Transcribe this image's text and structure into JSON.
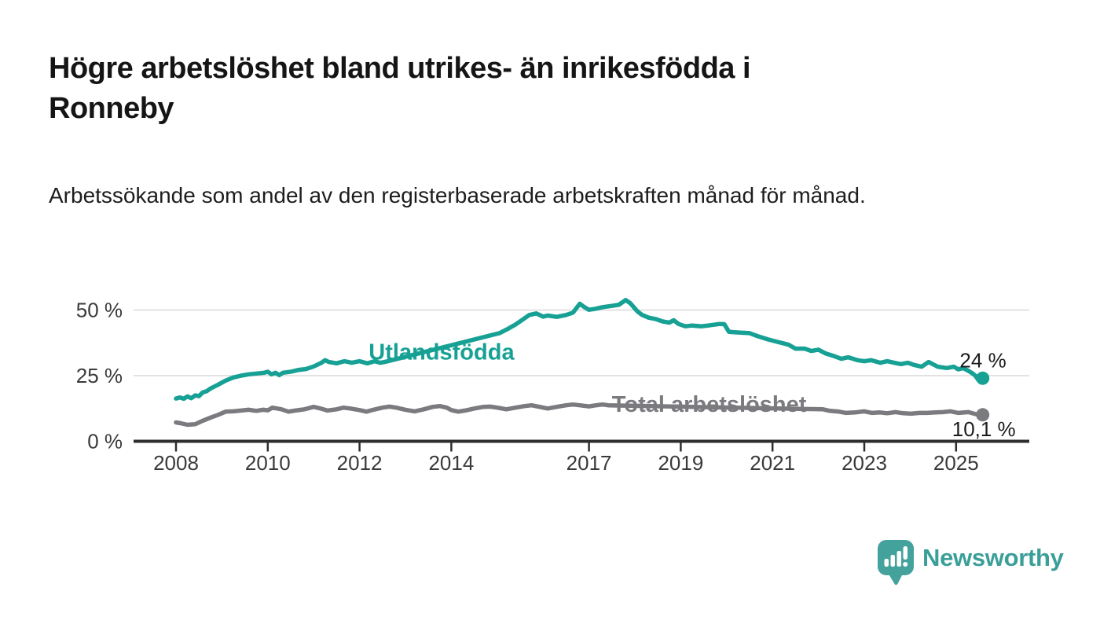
{
  "chart_data": {
    "type": "line",
    "title": "Högre arbetslöshet bland utrikes- än inrikesfödda i Ronneby",
    "subtitle": "Arbetssökande som andel av den registerbaserade arbetskraften månad för månad.",
    "xlabel": "",
    "ylabel": "",
    "x_unit": "year (monthly observations)",
    "xlim": [
      2007.5,
      2026.3
    ],
    "ylim": [
      0,
      57
    ],
    "grid": true,
    "legend_position": "inline-labels-on-lines",
    "x_ticks": [
      {
        "value": 2008,
        "label": "2008"
      },
      {
        "value": 2010,
        "label": "2010"
      },
      {
        "value": 2012,
        "label": "2012"
      },
      {
        "value": 2014,
        "label": "2014"
      },
      {
        "value": 2017,
        "label": "2017"
      },
      {
        "value": 2019,
        "label": "2019"
      },
      {
        "value": 2021,
        "label": "2021"
      },
      {
        "value": 2023,
        "label": "2023"
      },
      {
        "value": 2025,
        "label": "2025"
      }
    ],
    "y_ticks": [
      {
        "value": 50,
        "label": "50 %"
      },
      {
        "value": 25,
        "label": "25 %"
      },
      {
        "value": 0,
        "label": "0 %"
      }
    ],
    "colors": {
      "grid": "#d9d9d9",
      "axis": "#2e2e2e",
      "tick_text": "#3a3a3a",
      "end_label_text": "#1c1c1c"
    },
    "series": [
      {
        "name": "Utlandsfödda",
        "color": "#17a094",
        "end_value": 24,
        "end_label": "24 %",
        "label_anchor": {
          "year": 2012.2,
          "value": 31.2
        },
        "label_gap": [
          2012.56,
          2015.04
        ],
        "points": [
          [
            2008.0,
            16.3
          ],
          [
            2008.08,
            16.7
          ],
          [
            2008.17,
            16.2
          ],
          [
            2008.25,
            17.1
          ],
          [
            2008.33,
            16.4
          ],
          [
            2008.42,
            17.5
          ],
          [
            2008.5,
            17.2
          ],
          [
            2008.58,
            18.6
          ],
          [
            2008.67,
            19.1
          ],
          [
            2008.75,
            20.1
          ],
          [
            2008.92,
            21.6
          ],
          [
            2009.08,
            23.1
          ],
          [
            2009.25,
            24.3
          ],
          [
            2009.42,
            25.0
          ],
          [
            2009.58,
            25.5
          ],
          [
            2009.75,
            25.8
          ],
          [
            2009.92,
            26.1
          ],
          [
            2010.0,
            26.5
          ],
          [
            2010.08,
            25.5
          ],
          [
            2010.17,
            26.1
          ],
          [
            2010.25,
            25.2
          ],
          [
            2010.33,
            26.1
          ],
          [
            2010.5,
            26.5
          ],
          [
            2010.67,
            27.2
          ],
          [
            2010.83,
            27.5
          ],
          [
            2011.0,
            28.5
          ],
          [
            2011.17,
            29.9
          ],
          [
            2011.25,
            30.9
          ],
          [
            2011.33,
            30.2
          ],
          [
            2011.5,
            29.7
          ],
          [
            2011.67,
            30.5
          ],
          [
            2011.83,
            29.9
          ],
          [
            2012.0,
            30.5
          ],
          [
            2012.17,
            29.7
          ],
          [
            2012.33,
            30.5
          ],
          [
            2012.45,
            29.9
          ],
          [
            2012.55,
            30.2
          ],
          [
            2015.05,
            41.2
          ],
          [
            2015.15,
            42.1
          ],
          [
            2015.25,
            43.0
          ],
          [
            2015.4,
            44.5
          ],
          [
            2015.55,
            46.3
          ],
          [
            2015.7,
            48.1
          ],
          [
            2015.85,
            48.7
          ],
          [
            2016.0,
            47.5
          ],
          [
            2016.1,
            47.9
          ],
          [
            2016.3,
            47.4
          ],
          [
            2016.5,
            48.1
          ],
          [
            2016.65,
            49.0
          ],
          [
            2016.8,
            52.4
          ],
          [
            2016.9,
            51.1
          ],
          [
            2017.0,
            50.1
          ],
          [
            2017.15,
            50.5
          ],
          [
            2017.3,
            51.1
          ],
          [
            2017.5,
            51.6
          ],
          [
            2017.65,
            52.0
          ],
          [
            2017.8,
            53.8
          ],
          [
            2017.9,
            52.6
          ],
          [
            2018.05,
            49.6
          ],
          [
            2018.15,
            48.2
          ],
          [
            2018.3,
            47.1
          ],
          [
            2018.45,
            46.6
          ],
          [
            2018.6,
            45.7
          ],
          [
            2018.75,
            45.2
          ],
          [
            2018.85,
            46.1
          ],
          [
            2018.95,
            44.7
          ],
          [
            2019.1,
            43.8
          ],
          [
            2019.25,
            44.1
          ],
          [
            2019.45,
            43.8
          ],
          [
            2019.6,
            44.1
          ],
          [
            2019.85,
            44.7
          ],
          [
            2019.95,
            44.6
          ],
          [
            2020.05,
            41.7
          ],
          [
            2020.3,
            41.4
          ],
          [
            2020.5,
            41.2
          ],
          [
            2020.65,
            40.2
          ],
          [
            2020.9,
            38.8
          ],
          [
            2021.1,
            37.9
          ],
          [
            2021.35,
            36.8
          ],
          [
            2021.5,
            35.3
          ],
          [
            2021.7,
            35.3
          ],
          [
            2021.85,
            34.4
          ],
          [
            2022.0,
            34.9
          ],
          [
            2022.15,
            33.5
          ],
          [
            2022.35,
            32.4
          ],
          [
            2022.5,
            31.4
          ],
          [
            2022.65,
            32.0
          ],
          [
            2022.85,
            30.9
          ],
          [
            2023.0,
            30.5
          ],
          [
            2023.15,
            30.9
          ],
          [
            2023.35,
            29.9
          ],
          [
            2023.5,
            30.5
          ],
          [
            2023.65,
            29.9
          ],
          [
            2023.8,
            29.4
          ],
          [
            2023.95,
            29.9
          ],
          [
            2024.1,
            29.0
          ],
          [
            2024.25,
            28.4
          ],
          [
            2024.4,
            30.2
          ],
          [
            2024.6,
            28.4
          ],
          [
            2024.8,
            27.9
          ],
          [
            2024.95,
            28.4
          ],
          [
            2025.05,
            27.4
          ],
          [
            2025.15,
            27.9
          ],
          [
            2025.25,
            27.0
          ],
          [
            2025.35,
            26.0
          ],
          [
            2025.42,
            25.0
          ],
          [
            2025.48,
            23.5
          ],
          [
            2025.53,
            24.6
          ],
          [
            2025.58,
            24.0
          ]
        ]
      },
      {
        "name": "Total arbetslöshet",
        "color": "#7b7b7f",
        "end_value": 10.1,
        "end_label": "10,1 %",
        "label_anchor": {
          "year": 2017.5,
          "value": 11.3
        },
        "label_gap": [
          2017.43,
          2022.09
        ],
        "points": [
          [
            2008.0,
            7.2
          ],
          [
            2008.1,
            6.9
          ],
          [
            2008.25,
            6.3
          ],
          [
            2008.42,
            6.5
          ],
          [
            2008.58,
            7.8
          ],
          [
            2008.75,
            9.0
          ],
          [
            2008.92,
            10.1
          ],
          [
            2009.08,
            11.3
          ],
          [
            2009.25,
            11.4
          ],
          [
            2009.42,
            11.7
          ],
          [
            2009.58,
            12.0
          ],
          [
            2009.75,
            11.6
          ],
          [
            2009.9,
            12.0
          ],
          [
            2010.0,
            11.8
          ],
          [
            2010.1,
            12.8
          ],
          [
            2010.3,
            12.2
          ],
          [
            2010.45,
            11.3
          ],
          [
            2010.6,
            11.7
          ],
          [
            2010.8,
            12.2
          ],
          [
            2011.0,
            13.1
          ],
          [
            2011.15,
            12.5
          ],
          [
            2011.3,
            11.7
          ],
          [
            2011.5,
            12.2
          ],
          [
            2011.65,
            12.8
          ],
          [
            2011.8,
            12.5
          ],
          [
            2012.0,
            11.9
          ],
          [
            2012.15,
            11.3
          ],
          [
            2012.3,
            12.0
          ],
          [
            2012.5,
            12.8
          ],
          [
            2012.65,
            13.2
          ],
          [
            2012.8,
            12.8
          ],
          [
            2013.0,
            12.0
          ],
          [
            2013.2,
            11.4
          ],
          [
            2013.4,
            12.2
          ],
          [
            2013.6,
            13.1
          ],
          [
            2013.75,
            13.4
          ],
          [
            2013.9,
            12.8
          ],
          [
            2014.0,
            11.9
          ],
          [
            2014.15,
            11.3
          ],
          [
            2014.3,
            11.7
          ],
          [
            2014.5,
            12.5
          ],
          [
            2014.7,
            13.1
          ],
          [
            2014.85,
            13.2
          ],
          [
            2015.0,
            12.8
          ],
          [
            2015.2,
            12.2
          ],
          [
            2015.4,
            12.8
          ],
          [
            2015.6,
            13.4
          ],
          [
            2015.75,
            13.7
          ],
          [
            2015.9,
            13.2
          ],
          [
            2016.1,
            12.5
          ],
          [
            2016.3,
            13.1
          ],
          [
            2016.5,
            13.7
          ],
          [
            2016.65,
            14.0
          ],
          [
            2016.8,
            13.7
          ],
          [
            2017.0,
            13.3
          ],
          [
            2017.15,
            13.7
          ],
          [
            2017.3,
            14.0
          ],
          [
            2017.42,
            13.7
          ],
          [
            2022.1,
            12.2
          ],
          [
            2022.25,
            11.6
          ],
          [
            2022.45,
            11.3
          ],
          [
            2022.6,
            10.8
          ],
          [
            2022.8,
            11.0
          ],
          [
            2023.0,
            11.4
          ],
          [
            2023.17,
            10.8
          ],
          [
            2023.34,
            11.0
          ],
          [
            2023.5,
            10.7
          ],
          [
            2023.68,
            11.1
          ],
          [
            2023.85,
            10.7
          ],
          [
            2024.02,
            10.5
          ],
          [
            2024.2,
            10.8
          ],
          [
            2024.37,
            10.8
          ],
          [
            2024.55,
            11.0
          ],
          [
            2024.71,
            11.1
          ],
          [
            2024.88,
            11.4
          ],
          [
            2025.05,
            10.8
          ],
          [
            2025.27,
            11.1
          ],
          [
            2025.44,
            10.3
          ],
          [
            2025.58,
            10.1
          ]
        ]
      }
    ]
  },
  "branding": {
    "logo_text": "Newsworthy",
    "logo_icon": "bar-chart-speech-bubble-icon",
    "logo_color": "#3fa09a"
  }
}
